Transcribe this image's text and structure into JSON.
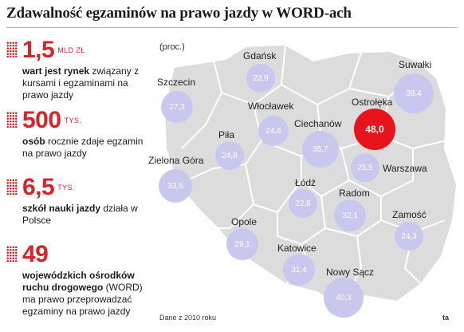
{
  "title": "Zdawalność egzaminów na prawo jazdy w WORD-ach",
  "unit_note": "(proc.)",
  "stats": [
    {
      "num": "1,5",
      "unit": "MLD ZŁ",
      "bold": "wart jest rynek",
      "text": " związany z kursami i egzaminami na prawo jazdy"
    },
    {
      "num": "500",
      "unit": "TYS.",
      "bold": "osób",
      "text": " rocznie zdaje egzamin na prawo jazdy"
    },
    {
      "num": "6,5",
      "unit": "TYS.",
      "bold": "szkół nauki jazdy",
      "text": " działa w Polsce"
    },
    {
      "num": "49",
      "unit": "",
      "bold": "wojewódzkich ośrodków ruchu drogowego",
      "text": " (WORD) ma prawo przeprowadzać egzaminy na prawo jazdy"
    }
  ],
  "cities": [
    {
      "name": "Gdańsk",
      "value": "23,9",
      "highlight": false
    },
    {
      "name": "Suwałki",
      "value": "39,4",
      "highlight": false
    },
    {
      "name": "Szczecin",
      "value": "27,3",
      "highlight": false
    },
    {
      "name": "Włocławek",
      "value": "24,6",
      "highlight": false
    },
    {
      "name": "Ostrołęka",
      "value": "48,0",
      "highlight": true
    },
    {
      "name": "Ciechanów",
      "value": "35,7",
      "highlight": false
    },
    {
      "name": "Piła",
      "value": "24,8",
      "highlight": false
    },
    {
      "name": "Zielona Góra",
      "value": "33,5",
      "highlight": false
    },
    {
      "name": "Warszawa",
      "value": "25,5",
      "highlight": false
    },
    {
      "name": "Łódź",
      "value": "22,8",
      "highlight": false
    },
    {
      "name": "Radom",
      "value": "32,1",
      "highlight": false
    },
    {
      "name": "Zamość",
      "value": "24,3",
      "highlight": false
    },
    {
      "name": "Opole",
      "value": "29,1",
      "highlight": false
    },
    {
      "name": "Katowice",
      "value": "31,4",
      "highlight": false
    },
    {
      "name": "Nowy Sącz",
      "value": "40,3",
      "highlight": false
    }
  ],
  "footer": "Dane z 2010 roku",
  "corner": "ta"
}
